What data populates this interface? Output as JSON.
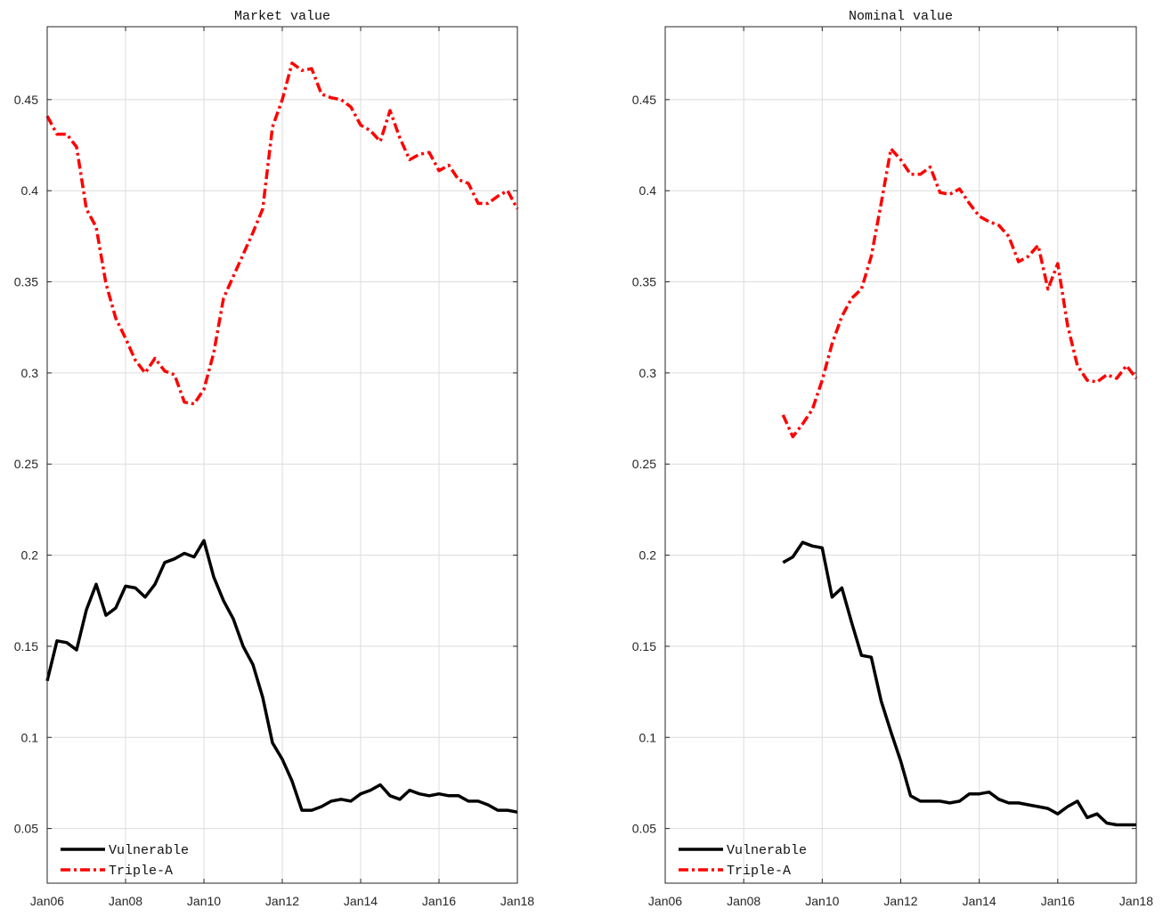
{
  "chart_data": [
    {
      "type": "line",
      "title": "Market value",
      "xlabel": "",
      "ylabel": "",
      "x_ticks": [
        "Jan06",
        "Jan08",
        "Jan10",
        "Jan12",
        "Jan14",
        "Jan16",
        "Jan18"
      ],
      "y_ticks": [
        "0.05",
        "0.1",
        "0.15",
        "0.2",
        "0.25",
        "0.3",
        "0.35",
        "0.4",
        "0.45"
      ],
      "xlim": [
        "2006-01",
        "2018-01"
      ],
      "ylim": [
        0.02,
        0.49
      ],
      "grid": true,
      "legend_position": "bottom-left",
      "series": [
        {
          "name": "Vulnerable",
          "color": "#000000",
          "style": "solid",
          "x": [
            "2006-01",
            "2006-04",
            "2006-07",
            "2006-10",
            "2007-01",
            "2007-04",
            "2007-07",
            "2007-10",
            "2008-01",
            "2008-04",
            "2008-07",
            "2008-10",
            "2009-01",
            "2009-04",
            "2009-07",
            "2009-10",
            "2010-01",
            "2010-04",
            "2010-07",
            "2010-10",
            "2011-01",
            "2011-04",
            "2011-07",
            "2011-10",
            "2012-01",
            "2012-04",
            "2012-07",
            "2012-10",
            "2013-01",
            "2013-04",
            "2013-07",
            "2013-10",
            "2014-01",
            "2014-04",
            "2014-07",
            "2014-10",
            "2015-01",
            "2015-04",
            "2015-07",
            "2015-10",
            "2016-01",
            "2016-04",
            "2016-07",
            "2016-10",
            "2017-01",
            "2017-04",
            "2017-07",
            "2017-10",
            "2018-01"
          ],
          "y": [
            0.131,
            0.153,
            0.152,
            0.148,
            0.17,
            0.184,
            0.167,
            0.171,
            0.183,
            0.182,
            0.177,
            0.184,
            0.196,
            0.198,
            0.201,
            0.199,
            0.208,
            0.188,
            0.175,
            0.165,
            0.15,
            0.14,
            0.122,
            0.097,
            0.088,
            0.076,
            0.06,
            0.06,
            0.062,
            0.065,
            0.066,
            0.065,
            0.069,
            0.071,
            0.074,
            0.068,
            0.066,
            0.071,
            0.069,
            0.068,
            0.069,
            0.068,
            0.068,
            0.065,
            0.065,
            0.063,
            0.06,
            0.06,
            0.059
          ]
        },
        {
          "name": "Triple-A",
          "color": "#ff0000",
          "style": "dashdot",
          "x": [
            "2006-01",
            "2006-04",
            "2006-07",
            "2006-10",
            "2007-01",
            "2007-04",
            "2007-07",
            "2007-10",
            "2008-01",
            "2008-04",
            "2008-07",
            "2008-10",
            "2009-01",
            "2009-04",
            "2009-07",
            "2009-10",
            "2010-01",
            "2010-04",
            "2010-07",
            "2010-10",
            "2011-01",
            "2011-04",
            "2011-07",
            "2011-10",
            "2012-01",
            "2012-04",
            "2012-07",
            "2012-10",
            "2013-01",
            "2013-04",
            "2013-07",
            "2013-10",
            "2014-01",
            "2014-04",
            "2014-07",
            "2014-10",
            "2015-01",
            "2015-04",
            "2015-07",
            "2015-10",
            "2016-01",
            "2016-04",
            "2016-07",
            "2016-10",
            "2017-01",
            "2017-04",
            "2017-07",
            "2017-10",
            "2018-01"
          ],
          "y": [
            0.441,
            0.431,
            0.431,
            0.424,
            0.39,
            0.38,
            0.349,
            0.33,
            0.319,
            0.307,
            0.3,
            0.308,
            0.301,
            0.299,
            0.284,
            0.283,
            0.291,
            0.311,
            0.341,
            0.353,
            0.365,
            0.377,
            0.39,
            0.435,
            0.45,
            0.47,
            0.466,
            0.467,
            0.453,
            0.451,
            0.45,
            0.446,
            0.436,
            0.433,
            0.427,
            0.444,
            0.429,
            0.417,
            0.42,
            0.421,
            0.411,
            0.414,
            0.406,
            0.404,
            0.393,
            0.393,
            0.397,
            0.4,
            0.39
          ]
        }
      ]
    },
    {
      "type": "line",
      "title": "Nominal value",
      "xlabel": "",
      "ylabel": "",
      "x_ticks": [
        "Jan06",
        "Jan08",
        "Jan10",
        "Jan12",
        "Jan14",
        "Jan16",
        "Jan18"
      ],
      "y_ticks": [
        "0.05",
        "0.1",
        "0.15",
        "0.2",
        "0.25",
        "0.3",
        "0.35",
        "0.4",
        "0.45"
      ],
      "xlim": [
        "2006-01",
        "2018-01"
      ],
      "ylim": [
        0.02,
        0.49
      ],
      "grid": true,
      "legend_position": "bottom-left",
      "series": [
        {
          "name": "Vulnerable",
          "color": "#000000",
          "style": "solid",
          "x": [
            "2009-01",
            "2009-04",
            "2009-07",
            "2009-10",
            "2010-01",
            "2010-04",
            "2010-07",
            "2010-10",
            "2011-01",
            "2011-04",
            "2011-07",
            "2011-10",
            "2012-01",
            "2012-04",
            "2012-07",
            "2012-10",
            "2013-01",
            "2013-04",
            "2013-07",
            "2013-10",
            "2014-01",
            "2014-04",
            "2014-07",
            "2014-10",
            "2015-01",
            "2015-04",
            "2015-07",
            "2015-10",
            "2016-01",
            "2016-04",
            "2016-07",
            "2016-10",
            "2017-01",
            "2017-04",
            "2017-07",
            "2017-10",
            "2018-01"
          ],
          "y": [
            0.196,
            0.199,
            0.207,
            0.205,
            0.204,
            0.177,
            0.182,
            0.163,
            0.145,
            0.144,
            0.12,
            0.103,
            0.087,
            0.068,
            0.065,
            0.065,
            0.065,
            0.064,
            0.065,
            0.069,
            0.069,
            0.07,
            0.066,
            0.064,
            0.064,
            0.063,
            0.062,
            0.061,
            0.058,
            0.062,
            0.065,
            0.056,
            0.058,
            0.053,
            0.052,
            0.052,
            0.052
          ]
        },
        {
          "name": "Triple-A",
          "color": "#ff0000",
          "style": "dashdot",
          "x": [
            "2009-01",
            "2009-04",
            "2009-07",
            "2009-10",
            "2010-01",
            "2010-04",
            "2010-07",
            "2010-10",
            "2011-01",
            "2011-04",
            "2011-07",
            "2011-10",
            "2012-01",
            "2012-04",
            "2012-07",
            "2012-10",
            "2013-01",
            "2013-04",
            "2013-07",
            "2013-10",
            "2014-01",
            "2014-04",
            "2014-07",
            "2014-10",
            "2015-01",
            "2015-04",
            "2015-07",
            "2015-10",
            "2016-01",
            "2016-04",
            "2016-07",
            "2016-10",
            "2017-01",
            "2017-04",
            "2017-07",
            "2017-10",
            "2018-01"
          ],
          "y": [
            0.277,
            0.265,
            0.272,
            0.28,
            0.296,
            0.316,
            0.331,
            0.341,
            0.346,
            0.364,
            0.393,
            0.423,
            0.417,
            0.409,
            0.409,
            0.413,
            0.399,
            0.398,
            0.401,
            0.393,
            0.386,
            0.383,
            0.381,
            0.375,
            0.361,
            0.364,
            0.37,
            0.346,
            0.36,
            0.326,
            0.304,
            0.296,
            0.295,
            0.299,
            0.297,
            0.304,
            0.297
          ]
        }
      ]
    }
  ]
}
